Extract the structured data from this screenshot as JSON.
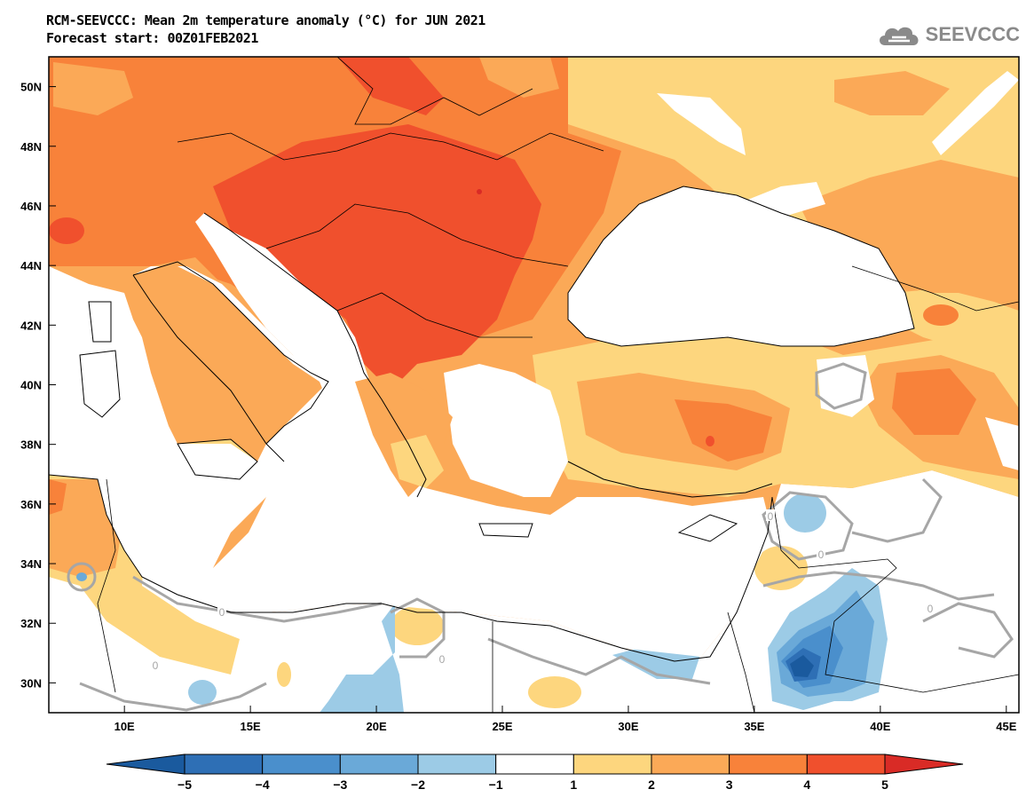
{
  "title": {
    "line1": "RCM-SEEVCCC: Mean 2m temperature anomaly (°C) for JUN 2021",
    "line2": "Forecast start: 00Z01FEB2021"
  },
  "logo": {
    "text": "SEEVCCC",
    "icon": "cloud-icon"
  },
  "map": {
    "lat_labels": [
      "50N",
      "48N",
      "46N",
      "44N",
      "42N",
      "40N",
      "38N",
      "36N",
      "34N",
      "32N",
      "30N"
    ],
    "lon_labels": [
      "10E",
      "15E",
      "20E",
      "25E",
      "30E",
      "35E",
      "40E",
      "45E"
    ],
    "contour_labels": [
      "0",
      "0",
      "0",
      "0",
      "0",
      "0"
    ],
    "lat_range": [
      29.0,
      51.0
    ],
    "lon_range": [
      7.0,
      45.5
    ]
  },
  "colorbar": {
    "ticks": [
      "−5",
      "−4",
      "−3",
      "−2",
      "−1",
      "1",
      "2",
      "3",
      "4",
      "5"
    ],
    "colors": [
      "#1a5a9e",
      "#2e6fb5",
      "#4a8fcc",
      "#6aa9d8",
      "#9ccbe6",
      "#ffffff",
      "#fdd67e",
      "#fba957",
      "#f8823a",
      "#f0502d",
      "#d92b26"
    ]
  },
  "colors": {
    "anom_1_2": "#fdd67e",
    "anom_2_3": "#fba957",
    "anom_3_4": "#f8823a",
    "anom_4_5": "#f0502d",
    "anom_5_plus": "#d92b26",
    "anom_m1_m2": "#9ccbe6",
    "anom_m2_m3": "#6aa9d8",
    "anom_m3_m4": "#4a8fcc",
    "anom_m4_m5": "#2e6fb5",
    "anom_m5_minus": "#1a5a9e",
    "zero_contour": "#a6a6a6"
  }
}
